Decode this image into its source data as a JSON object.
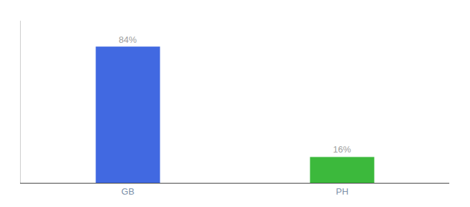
{
  "chart_data": {
    "type": "bar",
    "categories": [
      "GB",
      "PH"
    ],
    "values": [
      84,
      16
    ],
    "value_labels": [
      "84%",
      "16%"
    ],
    "colors": [
      "#4169E1",
      "#3CB93C"
    ],
    "ylim": [
      0,
      100
    ],
    "data_labels": true,
    "tick_labels": "x",
    "grid": false
  }
}
